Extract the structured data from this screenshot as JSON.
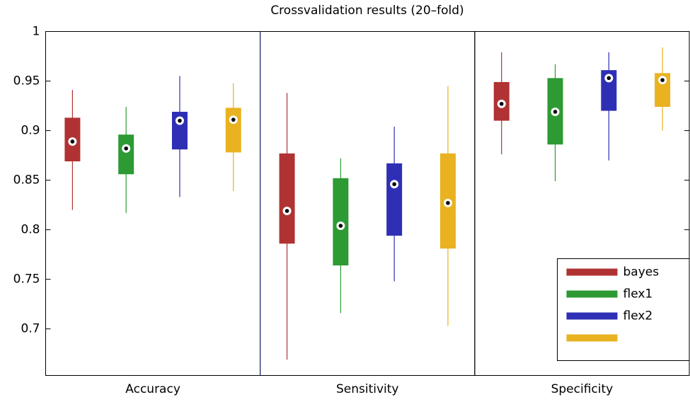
{
  "chart_data": {
    "type": "box",
    "title": "Crossvalidation results (20–fold)",
    "categories": [
      "Accuracy",
      "Sensitivity",
      "Specificity"
    ],
    "ylim": [
      0.653,
      1
    ],
    "yticks": [
      0.7,
      0.75,
      0.8,
      0.85,
      0.9,
      0.95,
      1
    ],
    "legend": "lower-right",
    "series": [
      {
        "name": "bayes",
        "color": "#b03232",
        "whisker_low": [
          0.82,
          0.669,
          0.876
        ],
        "q1": [
          0.869,
          0.786,
          0.91
        ],
        "median": [
          0.889,
          0.819,
          0.927
        ],
        "q3": [
          0.913,
          0.877,
          0.949
        ],
        "whisker_high": [
          0.941,
          0.938,
          0.979
        ]
      },
      {
        "name": "flex1",
        "color": "#2e9a34",
        "whisker_low": [
          0.817,
          0.716,
          0.849
        ],
        "q1": [
          0.856,
          0.764,
          0.886
        ],
        "median": [
          0.882,
          0.804,
          0.919
        ],
        "q3": [
          0.896,
          0.852,
          0.953
        ],
        "whisker_high": [
          0.924,
          0.872,
          0.967
        ]
      },
      {
        "name": "flex2",
        "color": "#2f2fb5",
        "whisker_low": [
          0.833,
          0.748,
          0.87
        ],
        "q1": [
          0.881,
          0.794,
          0.92
        ],
        "median": [
          0.91,
          0.846,
          0.953
        ],
        "q3": [
          0.919,
          0.867,
          0.961
        ],
        "whisker_high": [
          0.955,
          0.904,
          0.979
        ]
      },
      {
        "name": null,
        "color": "#e9b220",
        "whisker_low": [
          0.839,
          0.703,
          0.9
        ],
        "q1": [
          0.878,
          0.781,
          0.924
        ],
        "median": [
          0.911,
          0.827,
          0.951
        ],
        "q3": [
          0.923,
          0.877,
          0.958
        ],
        "whisker_high": [
          0.948,
          0.945,
          0.984
        ]
      }
    ]
  }
}
